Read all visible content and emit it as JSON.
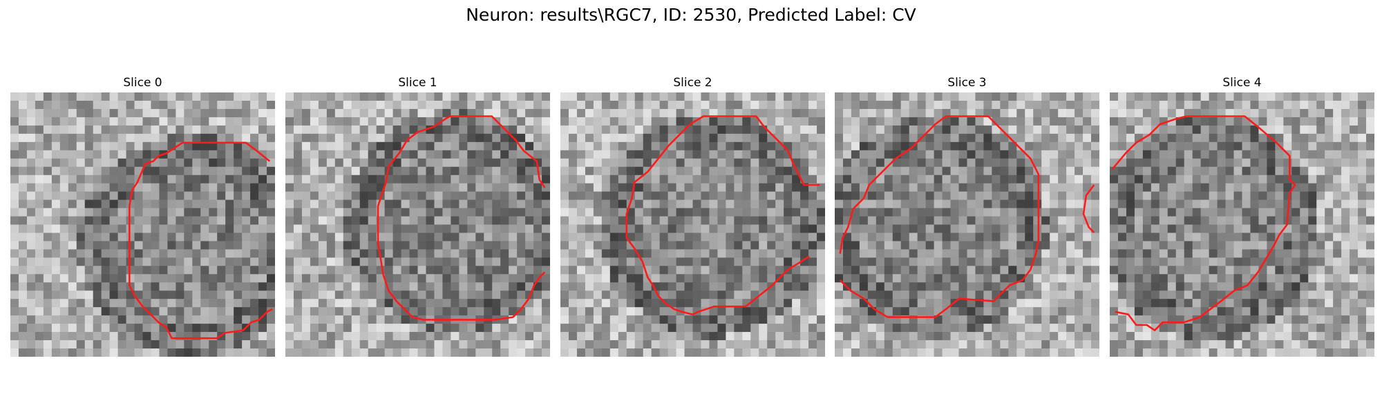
{
  "figure": {
    "title": "Neuron: results\\RGC7, ID: 2530, Predicted Label: CV"
  },
  "panels": [
    {
      "title": "Slice 0",
      "icon": "grayscale-image-patch",
      "contour_color": "#ff1a1a"
    },
    {
      "title": "Slice 1",
      "icon": "grayscale-image-patch",
      "contour_color": "#ff1a1a"
    },
    {
      "title": "Slice 2",
      "icon": "grayscale-image-patch",
      "contour_color": "#ff1a1a"
    },
    {
      "title": "Slice 3",
      "icon": "grayscale-image-patch",
      "contour_color": "#ff1a1a"
    },
    {
      "title": "Slice 4",
      "icon": "grayscale-image-patch",
      "contour_color": "#ff1a1a"
    }
  ]
}
